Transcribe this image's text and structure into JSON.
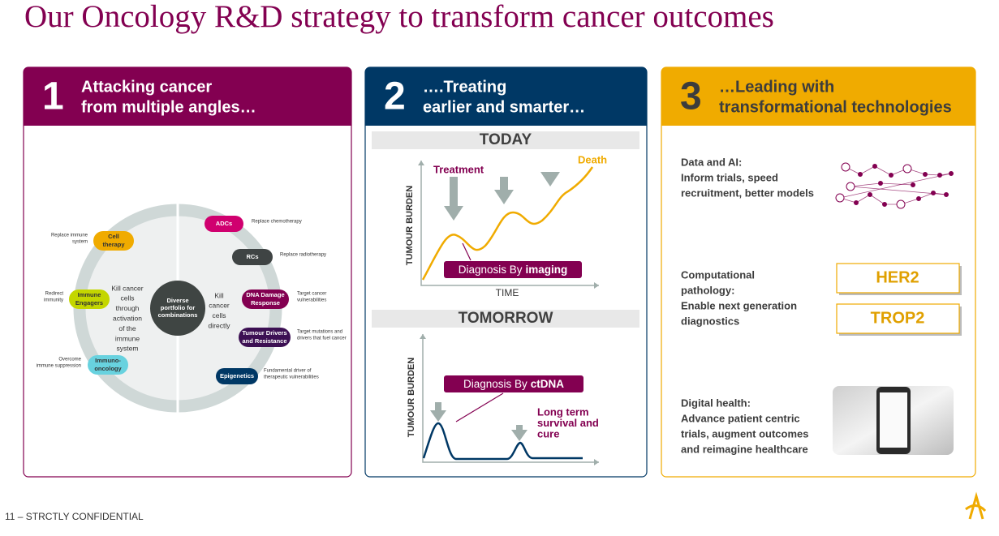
{
  "title": "Our Oncology R&D strategy to transform cancer outcomes",
  "footer": "11 – STRCTLY CONFIDENTIAL",
  "panel1": {
    "number": "1",
    "heading": [
      "Attacking cancer",
      "from multiple angles…"
    ],
    "center": [
      "Diverse",
      "portfolio for",
      "combinations"
    ],
    "left_label": [
      "Kill cancer",
      "cells",
      "through",
      "activation",
      "of the",
      "immune",
      "system"
    ],
    "right_label": [
      "Kill",
      "cancer",
      "cells",
      "directly"
    ],
    "modalities": [
      {
        "name": [
          "Cell",
          "therapy"
        ],
        "note": [
          "Replace immune",
          "system"
        ]
      },
      {
        "name": [
          "Immune",
          "Engagers"
        ],
        "note": [
          "Redirect",
          "immunity"
        ]
      },
      {
        "name": [
          "Immuno-",
          "oncology"
        ],
        "note": [
          "Overcome",
          "immune suppression"
        ]
      },
      {
        "name": [
          "ADCs"
        ],
        "note": [
          "Replace chemotherapy"
        ]
      },
      {
        "name": [
          "RCs"
        ],
        "note": [
          "Replace radiotherapy"
        ]
      },
      {
        "name": [
          "DNA Damage",
          "Response"
        ],
        "note": [
          "Target cancer",
          "vulnerabilities"
        ]
      },
      {
        "name": [
          "Tumour Drivers",
          "and Resistance"
        ],
        "note": [
          "Target mutations and",
          "drivers that fuel cancer"
        ]
      },
      {
        "name": [
          "Epigenetics"
        ],
        "note": [
          "Fundamental driver of",
          "therapeutic vulnerabilities"
        ]
      }
    ]
  },
  "panel2": {
    "number": "2",
    "heading": [
      "….Treating",
      "earlier and smarter…"
    ],
    "today": {
      "label": "TODAY",
      "treatment": "Treatment",
      "death": "Death",
      "y_axis": "TUMOUR BURDEN",
      "x_axis": "TIME",
      "diagnosis": {
        "text": "Diagnosis By",
        "emphasis": "imaging"
      }
    },
    "tomorrow": {
      "label": "TOMORROW",
      "y_axis": "TUMOUR BURDEN",
      "diagnosis": {
        "text": "Diagnosis By",
        "emphasis": "ctDNA"
      },
      "outcome": [
        "Long term",
        "survival and",
        "cure"
      ]
    }
  },
  "panel3": {
    "number": "3",
    "heading": [
      "…Leading with",
      "transformational technologies"
    ],
    "items": [
      {
        "title": "Data and AI:",
        "text": [
          "Inform trials, speed",
          "recruitment, better models"
        ]
      },
      {
        "title": "Computational",
        "text": [
          "pathology:",
          "Enable next generation",
          "diagnostics"
        ]
      },
      {
        "title": "Digital health:",
        "text": [
          "Advance patient centric",
          "trials, augment outcomes",
          "and reimagine healthcare"
        ]
      }
    ],
    "biomarkers": [
      "HER2",
      "TROP2"
    ]
  }
}
